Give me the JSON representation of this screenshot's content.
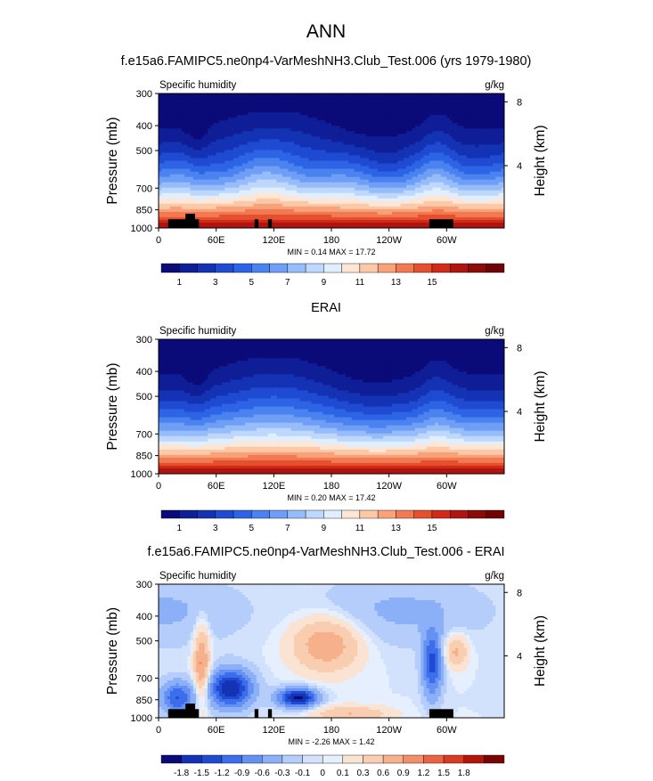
{
  "figure": {
    "main_title": "ANN"
  },
  "colors": {
    "seq_palette": [
      "#0a0a78",
      "#0f1e96",
      "#1432b4",
      "#1e4bd2",
      "#2d64e6",
      "#4a82f0",
      "#6e9ef5",
      "#96bcfa",
      "#bed7fc",
      "#e1eefd",
      "#fde6d6",
      "#fbc8a8",
      "#f8a27a",
      "#f27a52",
      "#e5502e",
      "#d02a18",
      "#b01410",
      "#8c0a08",
      "#6e0404"
    ],
    "diff_palette": [
      "#0a0a78",
      "#1432b4",
      "#1e4bd2",
      "#3c6eeb",
      "#6491f2",
      "#8cb0f7",
      "#b4cdfa",
      "#d2e1fc",
      "#e6effd",
      "#fbe3d3",
      "#f9cdb0",
      "#f6b08c",
      "#f28e68",
      "#ea6444",
      "#d83a22",
      "#b41408",
      "#780404"
    ],
    "land": "#000000"
  },
  "chart_data": [
    {
      "type": "heatmap",
      "title": "f.e15a6.FAMIPC5.ne0np4-VarMeshNH3.Club_Test.006 (yrs 1979-1980)",
      "left_label": "Specific humidity",
      "right_label": "g/kg",
      "ylabel": "Pressure (mb)",
      "y2label": "Height (km)",
      "yticks": [
        "300",
        "400",
        "500",
        "700",
        "850",
        "1000"
      ],
      "y2ticks": [
        "8",
        "4"
      ],
      "xticks": [
        "0",
        "60E",
        "120E",
        "180",
        "120W",
        "60W"
      ],
      "stats": "MIN =  0.14   MAX =  17.72",
      "colorbar_labels": [
        "1",
        "3",
        "5",
        "7",
        "9",
        "11",
        "13",
        "15"
      ],
      "land": true,
      "xlim": [
        0,
        360
      ],
      "ylim": [
        1000,
        300
      ],
      "min": 0.14,
      "max": 17.72
    },
    {
      "type": "heatmap",
      "title": "ERAI",
      "left_label": "Specific humidity",
      "right_label": "g/kg",
      "ylabel": "Pressure (mb)",
      "y2label": "Height (km)",
      "yticks": [
        "300",
        "400",
        "500",
        "700",
        "850",
        "1000"
      ],
      "y2ticks": [
        "8",
        "4"
      ],
      "xticks": [
        "0",
        "60E",
        "120E",
        "180",
        "120W",
        "60W"
      ],
      "stats": "MIN =  0.20   MAX =  17.42",
      "colorbar_labels": [
        "1",
        "3",
        "5",
        "7",
        "9",
        "11",
        "13",
        "15"
      ],
      "land": false,
      "xlim": [
        0,
        360
      ],
      "ylim": [
        1000,
        300
      ],
      "min": 0.2,
      "max": 17.42
    },
    {
      "type": "heatmap",
      "title": "f.e15a6.FAMIPC5.ne0np4-VarMeshNH3.Club_Test.006 - ERAI",
      "left_label": "Specific humidity",
      "right_label": "g/kg",
      "ylabel": "Pressure (mb)",
      "y2label": "Height (km)",
      "yticks": [
        "300",
        "400",
        "500",
        "700",
        "850",
        "1000"
      ],
      "y2ticks": [
        "8",
        "4"
      ],
      "xticks": [
        "0",
        "60E",
        "120E",
        "180",
        "120W",
        "60W"
      ],
      "stats": "MIN = -2.26   MAX =  1.42",
      "colorbar_labels": [
        "-1.8",
        "-1.5",
        "-1.2",
        "-0.9",
        "-0.6",
        "-0.3",
        "-0.1",
        "0",
        "0.1",
        "0.3",
        "0.6",
        "0.9",
        "1.2",
        "1.5",
        "1.8"
      ],
      "land": true,
      "xlim": [
        0,
        360
      ],
      "ylim": [
        1000,
        300
      ],
      "min": -2.26,
      "max": 1.42
    }
  ]
}
